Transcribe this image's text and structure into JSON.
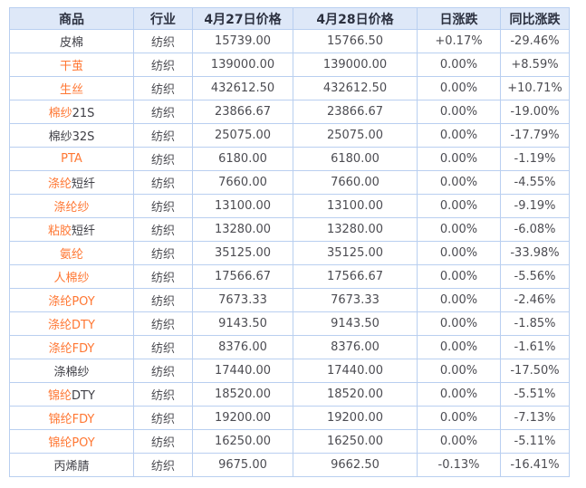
{
  "colors": {
    "header_bg": "#dee8f8",
    "table_border": "#b9cff0",
    "link_orange": "#ff7733",
    "up_red": "#fe0000",
    "down_green": "#009900",
    "text_dark": "#4c4c52"
  },
  "table": {
    "headers": [
      "商品",
      "行业",
      "4月27日价格",
      "4月28日价格",
      "日涨跌",
      "同比涨跌"
    ],
    "rows": [
      {
        "name_link": "",
        "name_plain": "皮棉",
        "industry": "纺织",
        "price_apr27": "15739.00",
        "price_apr28": "15766.50",
        "daily": "+0.17%",
        "daily_color": "red",
        "yoy": "-29.46%",
        "yoy_color": "green"
      },
      {
        "name_link": "干茧",
        "name_plain": "",
        "industry": "纺织",
        "price_apr27": "139000.00",
        "price_apr28": "139000.00",
        "daily": "0.00%",
        "daily_color": "dark",
        "yoy": "+8.59%",
        "yoy_color": "red"
      },
      {
        "name_link": "生丝",
        "name_plain": "",
        "industry": "纺织",
        "price_apr27": "432612.50",
        "price_apr28": "432612.50",
        "daily": "0.00%",
        "daily_color": "dark",
        "yoy": "+10.71%",
        "yoy_color": "red"
      },
      {
        "name_link": "棉纱",
        "name_plain": "21S",
        "industry": "纺织",
        "price_apr27": "23866.67",
        "price_apr28": "23866.67",
        "daily": "0.00%",
        "daily_color": "dark",
        "yoy": "-19.00%",
        "yoy_color": "green"
      },
      {
        "name_link": "",
        "name_plain": "棉纱32S",
        "industry": "纺织",
        "price_apr27": "25075.00",
        "price_apr28": "25075.00",
        "daily": "0.00%",
        "daily_color": "dark",
        "yoy": "-17.79%",
        "yoy_color": "green"
      },
      {
        "name_link": "PTA",
        "name_plain": "",
        "industry": "纺织",
        "price_apr27": "6180.00",
        "price_apr28": "6180.00",
        "daily": "0.00%",
        "daily_color": "dark",
        "yoy": "-1.19%",
        "yoy_color": "green"
      },
      {
        "name_link": "涤纶",
        "name_plain": "短纤",
        "industry": "纺织",
        "price_apr27": "7660.00",
        "price_apr28": "7660.00",
        "daily": "0.00%",
        "daily_color": "dark",
        "yoy": "-4.55%",
        "yoy_color": "green"
      },
      {
        "name_link": "涤纶纱",
        "name_plain": "",
        "industry": "纺织",
        "price_apr27": "13100.00",
        "price_apr28": "13100.00",
        "daily": "0.00%",
        "daily_color": "dark",
        "yoy": "-9.19%",
        "yoy_color": "green"
      },
      {
        "name_link": "粘胶",
        "name_plain": "短纤",
        "industry": "纺织",
        "price_apr27": "13280.00",
        "price_apr28": "13280.00",
        "daily": "0.00%",
        "daily_color": "dark",
        "yoy": "-6.08%",
        "yoy_color": "green"
      },
      {
        "name_link": "氨纶",
        "name_plain": "",
        "industry": "纺织",
        "price_apr27": "35125.00",
        "price_apr28": "35125.00",
        "daily": "0.00%",
        "daily_color": "dark",
        "yoy": "-33.98%",
        "yoy_color": "green"
      },
      {
        "name_link": "人棉纱",
        "name_plain": "",
        "industry": "纺织",
        "price_apr27": "17566.67",
        "price_apr28": "17566.67",
        "daily": "0.00%",
        "daily_color": "dark",
        "yoy": "-5.56%",
        "yoy_color": "green"
      },
      {
        "name_link": "涤纶POY",
        "name_plain": "",
        "industry": "纺织",
        "price_apr27": "7673.33",
        "price_apr28": "7673.33",
        "daily": "0.00%",
        "daily_color": "dark",
        "yoy": "-2.46%",
        "yoy_color": "green"
      },
      {
        "name_link": "涤纶DTY",
        "name_plain": "",
        "industry": "纺织",
        "price_apr27": "9143.50",
        "price_apr28": "9143.50",
        "daily": "0.00%",
        "daily_color": "dark",
        "yoy": "-1.85%",
        "yoy_color": "green"
      },
      {
        "name_link": "涤纶FDY",
        "name_plain": "",
        "industry": "纺织",
        "price_apr27": "8376.00",
        "price_apr28": "8376.00",
        "daily": "0.00%",
        "daily_color": "dark",
        "yoy": "-1.61%",
        "yoy_color": "green"
      },
      {
        "name_link": "",
        "name_plain": "涤棉纱",
        "industry": "纺织",
        "price_apr27": "17440.00",
        "price_apr28": "17440.00",
        "daily": "0.00%",
        "daily_color": "dark",
        "yoy": "-17.50%",
        "yoy_color": "green"
      },
      {
        "name_link": "锦纶",
        "name_plain": "DTY",
        "industry": "纺织",
        "price_apr27": "18520.00",
        "price_apr28": "18520.00",
        "daily": "0.00%",
        "daily_color": "dark",
        "yoy": "-5.51%",
        "yoy_color": "green"
      },
      {
        "name_link": "锦纶FDY",
        "name_plain": "",
        "industry": "纺织",
        "price_apr27": "19200.00",
        "price_apr28": "19200.00",
        "daily": "0.00%",
        "daily_color": "dark",
        "yoy": "-7.13%",
        "yoy_color": "green"
      },
      {
        "name_link": "锦纶POY",
        "name_plain": "",
        "industry": "纺织",
        "price_apr27": "16250.00",
        "price_apr28": "16250.00",
        "daily": "0.00%",
        "daily_color": "dark",
        "yoy": "-5.11%",
        "yoy_color": "green"
      },
      {
        "name_link": "",
        "name_plain": "丙烯腈",
        "industry": "纺织",
        "price_apr27": "9675.00",
        "price_apr28": "9662.50",
        "daily": "-0.13%",
        "daily_color": "green",
        "yoy": "-16.41%",
        "yoy_color": "green"
      }
    ]
  }
}
